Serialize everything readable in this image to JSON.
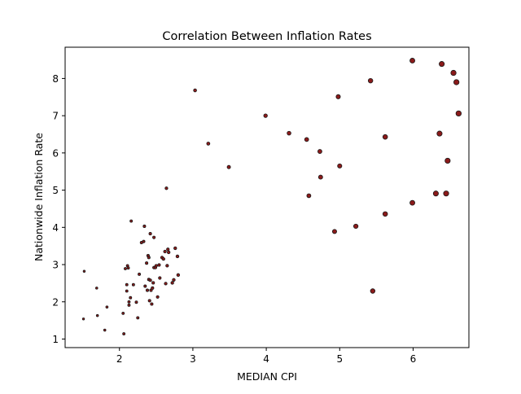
{
  "chart_data": {
    "type": "scatter",
    "title": "Correlation Between Inflation Rates",
    "xlabel": "MEDIAN CPI",
    "ylabel": "Nationwide Inflation Rate",
    "xlim": [
      1.26,
      6.76
    ],
    "ylim": [
      0.77,
      8.84
    ],
    "xticks": [
      2,
      3,
      4,
      5,
      6
    ],
    "yticks": [
      1,
      2,
      3,
      4,
      5,
      6,
      7,
      8
    ],
    "grid": false,
    "marker_color": "#8b1a1a",
    "marker_edge": "#1a1a1a",
    "series": [
      {
        "points": [
          [
            1.51,
            1.54
          ],
          [
            1.52,
            2.82
          ],
          [
            1.69,
            2.37
          ],
          [
            1.7,
            1.63
          ],
          [
            1.8,
            1.24
          ],
          [
            1.83,
            1.86
          ],
          [
            2.05,
            1.69
          ],
          [
            2.06,
            1.14
          ],
          [
            2.08,
            2.89
          ],
          [
            2.1,
            2.29
          ],
          [
            2.1,
            2.46
          ],
          [
            2.11,
            2.97
          ],
          [
            2.12,
            2.91
          ],
          [
            2.13,
            2.0
          ],
          [
            2.13,
            1.91
          ],
          [
            2.15,
            2.11
          ],
          [
            2.16,
            4.17
          ],
          [
            2.19,
            2.46
          ],
          [
            2.23,
            1.99
          ],
          [
            2.25,
            1.57
          ],
          [
            2.27,
            2.74
          ],
          [
            2.3,
            3.59
          ],
          [
            2.33,
            3.62
          ],
          [
            2.34,
            4.03
          ],
          [
            2.35,
            2.42
          ],
          [
            2.37,
            3.04
          ],
          [
            2.38,
            2.31
          ],
          [
            2.39,
            3.24
          ],
          [
            2.4,
            2.6
          ],
          [
            2.4,
            3.19
          ],
          [
            2.41,
            2.03
          ],
          [
            2.42,
            3.83
          ],
          [
            2.42,
            2.58
          ],
          [
            2.43,
            2.31
          ],
          [
            2.44,
            1.94
          ],
          [
            2.45,
            2.37
          ],
          [
            2.46,
            2.51
          ],
          [
            2.47,
            2.92
          ],
          [
            2.47,
            3.73
          ],
          [
            2.49,
            2.92
          ],
          [
            2.5,
            2.97
          ],
          [
            2.52,
            2.13
          ],
          [
            2.54,
            2.99
          ],
          [
            2.55,
            2.64
          ],
          [
            2.58,
            3.19
          ],
          [
            2.6,
            3.15
          ],
          [
            2.62,
            3.35
          ],
          [
            2.63,
            2.49
          ],
          [
            2.64,
            5.05
          ],
          [
            2.65,
            2.97
          ],
          [
            2.66,
            3.41
          ],
          [
            2.67,
            3.33
          ],
          [
            2.72,
            2.51
          ],
          [
            2.74,
            2.59
          ],
          [
            2.76,
            3.44
          ],
          [
            2.79,
            3.22
          ],
          [
            2.8,
            2.72
          ],
          [
            3.03,
            7.68
          ],
          [
            3.21,
            6.25
          ],
          [
            3.49,
            5.62
          ],
          [
            3.99,
            7.0
          ],
          [
            4.31,
            6.53
          ],
          [
            4.55,
            6.36
          ],
          [
            4.58,
            4.85
          ],
          [
            4.73,
            6.04
          ],
          [
            4.74,
            5.35
          ],
          [
            4.93,
            3.89
          ],
          [
            4.98,
            7.51
          ],
          [
            5.0,
            5.65
          ],
          [
            5.22,
            4.03
          ],
          [
            5.42,
            7.94
          ],
          [
            5.45,
            2.29
          ],
          [
            5.62,
            6.43
          ],
          [
            5.62,
            4.36
          ],
          [
            5.99,
            4.66
          ],
          [
            5.99,
            8.48
          ],
          [
            6.31,
            4.91
          ],
          [
            6.36,
            6.52
          ],
          [
            6.39,
            8.39
          ],
          [
            6.45,
            4.91
          ],
          [
            6.47,
            5.79
          ],
          [
            6.55,
            8.15
          ],
          [
            6.59,
            7.9
          ],
          [
            6.62,
            7.06
          ]
        ]
      }
    ]
  }
}
